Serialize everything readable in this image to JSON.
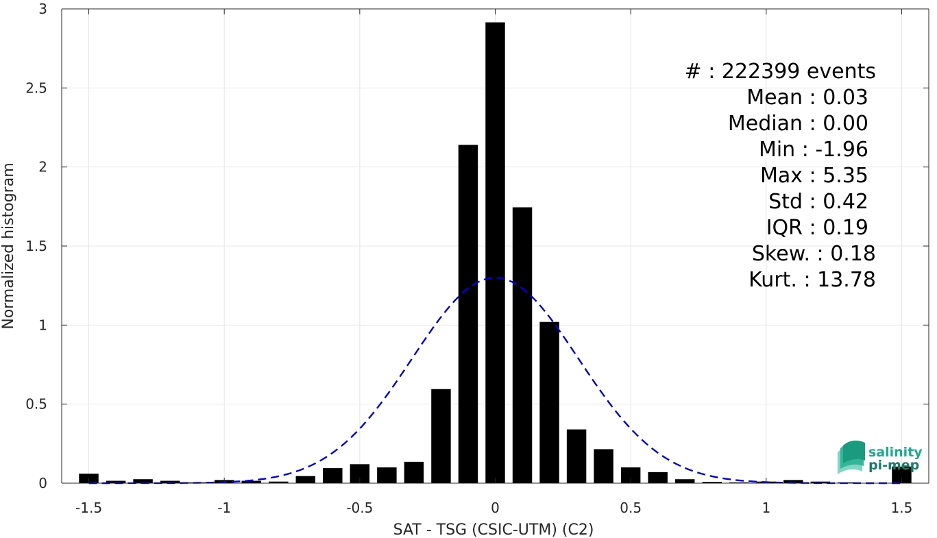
{
  "chart_data": {
    "type": "bar",
    "title": "",
    "xlabel": "SAT - TSG (CSIC-UTM) (C2)",
    "ylabel": "Normalized histogram",
    "xlim": [
      -1.6,
      1.6
    ],
    "ylim": [
      0,
      3
    ],
    "grid": true,
    "xticks": [
      -1.5,
      -1,
      -0.5,
      0,
      0.5,
      1,
      1.5
    ],
    "xtick_labels": [
      "-1.5",
      "-1",
      "-0.5",
      "0",
      "0.5",
      "1",
      "1.5"
    ],
    "yticks": [
      0,
      0.5,
      1,
      1.5,
      2,
      2.5,
      3
    ],
    "ytick_labels": [
      "0",
      "0.5",
      "1",
      "1.5",
      "2",
      "2.5",
      "3"
    ],
    "bin_width": 0.1,
    "bar_width_fraction": 0.72,
    "bins": [
      {
        "x": -1.5,
        "y": 0.06
      },
      {
        "x": -1.4,
        "y": 0.015
      },
      {
        "x": -1.3,
        "y": 0.025
      },
      {
        "x": -1.2,
        "y": 0.015
      },
      {
        "x": -1.1,
        "y": 0.005
      },
      {
        "x": -1.0,
        "y": 0.02
      },
      {
        "x": -0.9,
        "y": 0.015
      },
      {
        "x": -0.8,
        "y": 0.01
      },
      {
        "x": -0.7,
        "y": 0.045
      },
      {
        "x": -0.6,
        "y": 0.095
      },
      {
        "x": -0.5,
        "y": 0.12
      },
      {
        "x": -0.4,
        "y": 0.1
      },
      {
        "x": -0.3,
        "y": 0.135
      },
      {
        "x": -0.2,
        "y": 0.595
      },
      {
        "x": -0.1,
        "y": 2.14
      },
      {
        "x": 0.0,
        "y": 2.915
      },
      {
        "x": 0.1,
        "y": 1.745
      },
      {
        "x": 0.2,
        "y": 1.02
      },
      {
        "x": 0.3,
        "y": 0.34
      },
      {
        "x": 0.4,
        "y": 0.215
      },
      {
        "x": 0.5,
        "y": 0.1
      },
      {
        "x": 0.6,
        "y": 0.07
      },
      {
        "x": 0.7,
        "y": 0.025
      },
      {
        "x": 0.8,
        "y": 0.008
      },
      {
        "x": 0.9,
        "y": 0.005
      },
      {
        "x": 1.0,
        "y": 0.01
      },
      {
        "x": 1.1,
        "y": 0.02
      },
      {
        "x": 1.2,
        "y": 0.01
      },
      {
        "x": 1.3,
        "y": 0.005
      },
      {
        "x": 1.5,
        "y": 0.105
      }
    ],
    "normal_fit": {
      "mean": 0.0,
      "std": 0.307,
      "style": "dashed",
      "color": "#0000e6",
      "x_range": [
        -1.5,
        1.5
      ]
    },
    "stats_lines": [
      "#  : 222399 events",
      "Mean : 0.03",
      "Median : 0.00",
      "Min : -1.96",
      "Max : 5.35",
      "Std : 0.42",
      "IQR : 0.19",
      "Skew. : 0.18",
      "Kurt. : 13.78"
    ],
    "colors": {
      "bars": "#000000",
      "fit": "#0000e6",
      "grid": "#e6e6e6",
      "axes": "#262626"
    }
  },
  "logo": {
    "line1": "salinity",
    "line2": "pi-mep",
    "color1": "#1aaa8e",
    "color2": "#137f6b"
  }
}
